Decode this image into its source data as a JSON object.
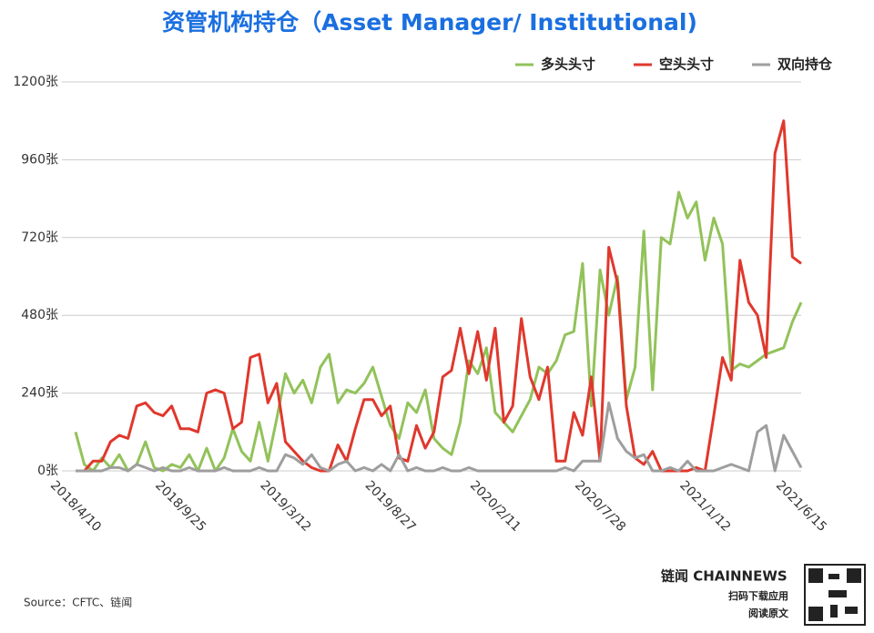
{
  "chart_data": {
    "type": "line",
    "title": "资管机构持仓（Asset Manager/ Institutional)",
    "source": "Source：CFTC、链闻",
    "brand": "链闻 CHAINNEWS",
    "brand_lines": [
      "扫码下载应用",
      "阅读原文"
    ],
    "categories": [
      "2018/4/10",
      null,
      null,
      null,
      null,
      null,
      null,
      null,
      null,
      null,
      null,
      null,
      "2018/9/25",
      null,
      null,
      null,
      null,
      null,
      null,
      null,
      null,
      null,
      null,
      null,
      "2019/3/12",
      null,
      null,
      null,
      null,
      null,
      null,
      null,
      null,
      null,
      null,
      null,
      "2019/8/27",
      null,
      null,
      null,
      null,
      null,
      null,
      null,
      null,
      null,
      null,
      null,
      "2020/2/11",
      null,
      null,
      null,
      null,
      null,
      null,
      null,
      null,
      null,
      null,
      null,
      "2020/7/28",
      null,
      null,
      null,
      null,
      null,
      null,
      null,
      null,
      null,
      null,
      null,
      "2021/1/12",
      null,
      null,
      null,
      null,
      null,
      null,
      null,
      null,
      null,
      null,
      "2021/6/15"
    ],
    "series": [
      {
        "name": "多头头寸",
        "color": "#92c25a",
        "values": [
          120,
          20,
          0,
          40,
          10,
          50,
          0,
          20,
          90,
          10,
          0,
          20,
          10,
          50,
          0,
          70,
          0,
          40,
          130,
          60,
          30,
          150,
          30,
          160,
          300,
          240,
          280,
          210,
          320,
          360,
          210,
          250,
          240,
          270,
          320,
          230,
          140,
          100,
          210,
          180,
          250,
          100,
          70,
          50,
          150,
          340,
          300,
          380,
          180,
          150,
          120,
          170,
          220,
          320,
          300,
          340,
          420,
          430,
          640,
          200,
          620,
          480,
          600,
          220,
          320,
          740,
          250,
          720,
          700,
          860,
          780,
          830,
          650,
          780,
          700,
          310,
          330,
          320,
          340,
          360,
          370,
          380,
          460,
          520
        ]
      },
      {
        "name": "空头头寸",
        "color": "#e0382d",
        "values": [
          0,
          0,
          30,
          30,
          90,
          110,
          100,
          200,
          210,
          180,
          170,
          200,
          130,
          130,
          120,
          240,
          250,
          240,
          130,
          150,
          350,
          360,
          210,
          270,
          90,
          60,
          30,
          10,
          0,
          0,
          80,
          30,
          130,
          220,
          220,
          170,
          200,
          40,
          30,
          140,
          70,
          120,
          290,
          310,
          440,
          300,
          430,
          280,
          440,
          150,
          200,
          470,
          290,
          220,
          320,
          30,
          30,
          180,
          110,
          290,
          30,
          690,
          580,
          200,
          40,
          20,
          60,
          0,
          0,
          0,
          0,
          10,
          0,
          170,
          350,
          280,
          650,
          520,
          480,
          350,
          980,
          1080,
          660,
          640
        ]
      },
      {
        "name": "双向持仓",
        "color": "#9e9e9e",
        "values": [
          0,
          0,
          0,
          0,
          10,
          10,
          0,
          20,
          10,
          0,
          10,
          0,
          0,
          10,
          0,
          0,
          0,
          10,
          0,
          0,
          0,
          10,
          0,
          0,
          50,
          40,
          20,
          50,
          10,
          0,
          20,
          30,
          0,
          10,
          0,
          20,
          0,
          50,
          0,
          10,
          0,
          0,
          10,
          0,
          0,
          10,
          0,
          0,
          0,
          0,
          0,
          0,
          0,
          0,
          0,
          0,
          10,
          0,
          30,
          30,
          30,
          210,
          100,
          60,
          40,
          50,
          0,
          0,
          10,
          0,
          30,
          0,
          0,
          0,
          10,
          20,
          10,
          0,
          120,
          140,
          0,
          110,
          60,
          10
        ]
      }
    ],
    "ylim": [
      0,
      1200
    ],
    "yticks": [
      {
        "value": 0,
        "label": "0张"
      },
      {
        "value": 240,
        "label": "240张"
      },
      {
        "value": 480,
        "label": "480张"
      },
      {
        "value": 720,
        "label": "720张"
      },
      {
        "value": 960,
        "label": "960张"
      },
      {
        "value": 1200,
        "label": "1200张"
      }
    ],
    "grid": true,
    "legend": "top-right"
  }
}
